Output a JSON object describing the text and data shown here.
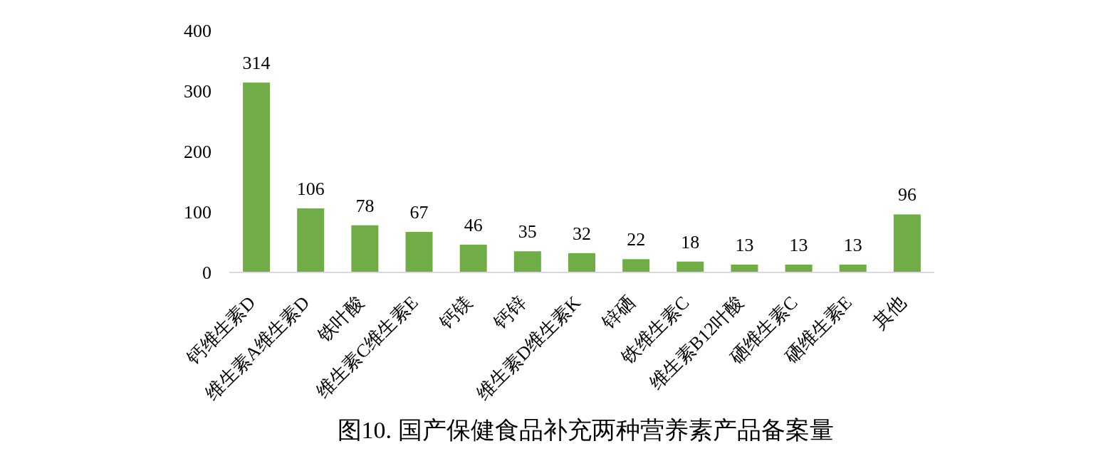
{
  "chart_data": {
    "type": "bar",
    "title": "图10. 国产保健食品补充两种营养素产品备案量",
    "categories": [
      "钙维生素D",
      "维生素A维生素D",
      "铁叶酸",
      "维生素C维生素E",
      "钙镁",
      "钙锌",
      "维生素D维生素K",
      "锌硒",
      "铁维生素C",
      "维生素B12叶酸",
      "硒维生素C",
      "硒维生素E",
      "其他"
    ],
    "values": [
      314,
      106,
      78,
      67,
      46,
      35,
      32,
      22,
      18,
      13,
      13,
      13,
      96
    ],
    "color": "#70ad47",
    "ylim": [
      0,
      400
    ],
    "yticks": [
      0,
      100,
      200,
      300,
      400
    ],
    "grid": false,
    "data_labels": true
  }
}
